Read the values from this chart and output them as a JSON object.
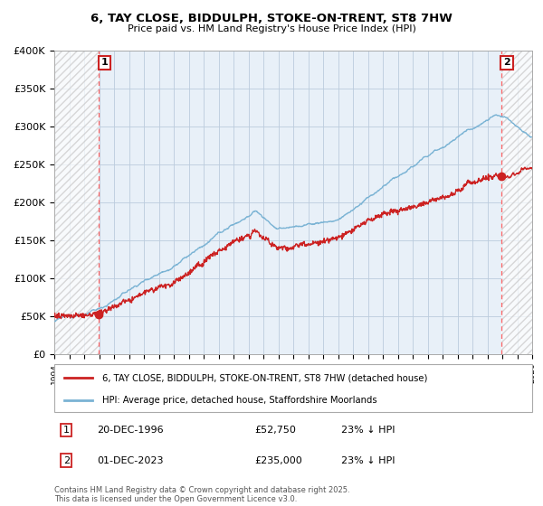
{
  "title": "6, TAY CLOSE, BIDDULPH, STOKE-ON-TRENT, ST8 7HW",
  "subtitle": "Price paid vs. HM Land Registry's House Price Index (HPI)",
  "ylabel_ticks": [
    "£0",
    "£50K",
    "£100K",
    "£150K",
    "£200K",
    "£250K",
    "£300K",
    "£350K",
    "£400K"
  ],
  "ytick_vals": [
    0,
    50000,
    100000,
    150000,
    200000,
    250000,
    300000,
    350000,
    400000
  ],
  "ylim": [
    0,
    400000
  ],
  "xlim_start": 1994.0,
  "xlim_end": 2026.0,
  "hpi_color": "#7ab3d4",
  "price_color": "#cc2222",
  "marker1_date": 1996.96,
  "marker1_price": 52750,
  "marker2_date": 2023.92,
  "marker2_price": 235000,
  "legend_label1": "6, TAY CLOSE, BIDDULPH, STOKE-ON-TRENT, ST8 7HW (detached house)",
  "legend_label2": "HPI: Average price, detached house, Staffordshire Moorlands",
  "note1_num": "1",
  "note1_date": "20-DEC-1996",
  "note1_price": "£52,750",
  "note1_hpi": "23% ↓ HPI",
  "note2_num": "2",
  "note2_date": "01-DEC-2023",
  "note2_price": "£235,000",
  "note2_hpi": "23% ↓ HPI",
  "footer": "Contains HM Land Registry data © Crown copyright and database right 2025.\nThis data is licensed under the Open Government Licence v3.0.",
  "grid_color": "#bbccdd",
  "plot_bg": "#e8f0f8",
  "hatch_color": "#c8c8c8",
  "dpi": 100,
  "fig_width": 6.0,
  "fig_height": 5.6
}
